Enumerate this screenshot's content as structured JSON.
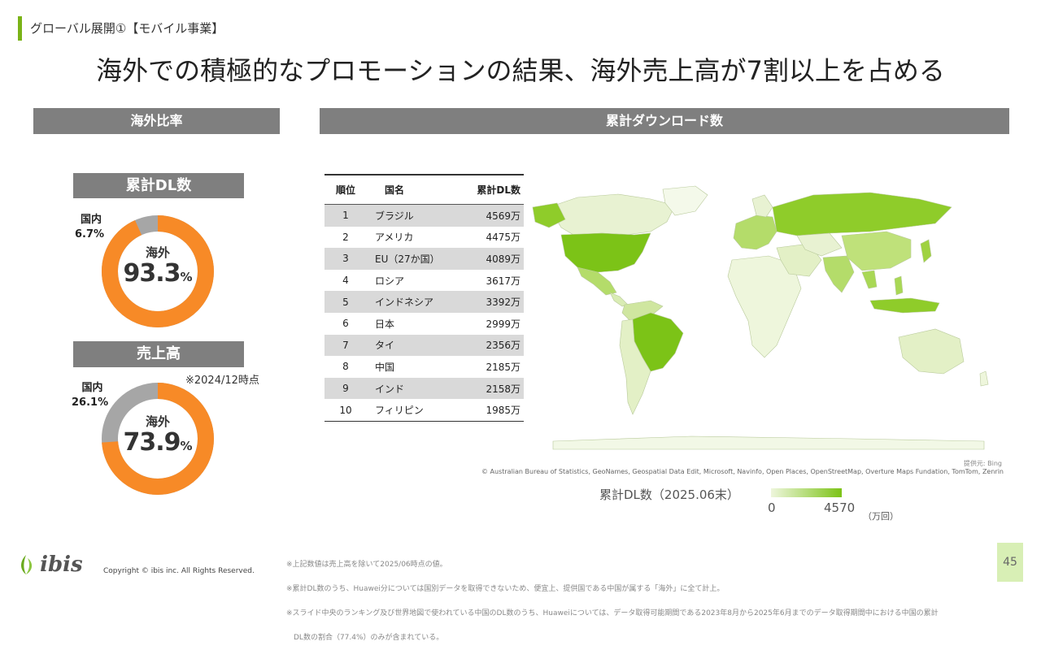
{
  "section_label": "グローバル展開①【モバイル事業】",
  "headline": "海外での積極的なプロモーションの結果、海外売上高が7割以上を占める",
  "left_header": "海外比率",
  "right_header": "累計ダウンロード数",
  "dl_block": {
    "title": "累計DL数",
    "domestic_label": "国内",
    "domestic_pct": "6.7%",
    "overseas_label": "海外",
    "overseas_value": "93.3",
    "percent_sign": "%",
    "overseas_fraction": 0.933
  },
  "sales_block": {
    "title": "売上高",
    "note": "※2024/12時点",
    "domestic_label": "国内",
    "domestic_pct": "26.1%",
    "overseas_label": "海外",
    "overseas_value": "73.9",
    "percent_sign": "%",
    "overseas_fraction": 0.739
  },
  "colors": {
    "orange": "#f78a27",
    "gray": "#a6a6a6",
    "accent_green": "#7ab317",
    "map_low": "#eef6dc",
    "map_high": "#7cc317"
  },
  "table": {
    "headers": [
      "順位",
      "国名",
      "累計DL数"
    ],
    "rows": [
      {
        "rank": "1",
        "country": "ブラジル",
        "dl": "4569万"
      },
      {
        "rank": "2",
        "country": "アメリカ",
        "dl": "4475万"
      },
      {
        "rank": "3",
        "country": "EU（27か国）",
        "dl": "4089万"
      },
      {
        "rank": "4",
        "country": "ロシア",
        "dl": "3617万"
      },
      {
        "rank": "5",
        "country": "インドネシア",
        "dl": "3392万"
      },
      {
        "rank": "6",
        "country": "日本",
        "dl": "2999万"
      },
      {
        "rank": "7",
        "country": "タイ",
        "dl": "2356万"
      },
      {
        "rank": "8",
        "country": "中国",
        "dl": "2185万"
      },
      {
        "rank": "9",
        "country": "インド",
        "dl": "2158万"
      },
      {
        "rank": "10",
        "country": "フィリピン",
        "dl": "1985万"
      }
    ]
  },
  "map": {
    "provider": "提供元: Bing",
    "attribution": "© Australian Bureau of Statistics, GeoNames, Geospatial Data Edit, Microsoft, Navinfo, Open Places, OpenStreetMap, Overture Maps Fundation, TomTom, Zenrin",
    "legend_title": "累計DL数（2025.06末）",
    "legend_min": "0",
    "legend_max": "4570",
    "legend_unit": "（万回）"
  },
  "footer": {
    "logo_text": "ibis",
    "copyright": "Copyright © ibis inc. All Rights Reserved.",
    "notes": [
      "※上記数値は売上高を除いて2025/06時点の値。",
      "※累計DL数のうち、Huawei分については国別データを取得できないため、便宜上、提供国である中国が属する「海外」に全て計上。",
      "※スライド中央のランキング及び世界地図で使われている中国のDL数のうち、Huaweiについては、データ取得可能期間である2023年8月から2025年6月までのデータ取得期間中における中国の累計",
      "　DL数の割合（77.4%）のみが含まれている。"
    ],
    "page_number": "45"
  }
}
